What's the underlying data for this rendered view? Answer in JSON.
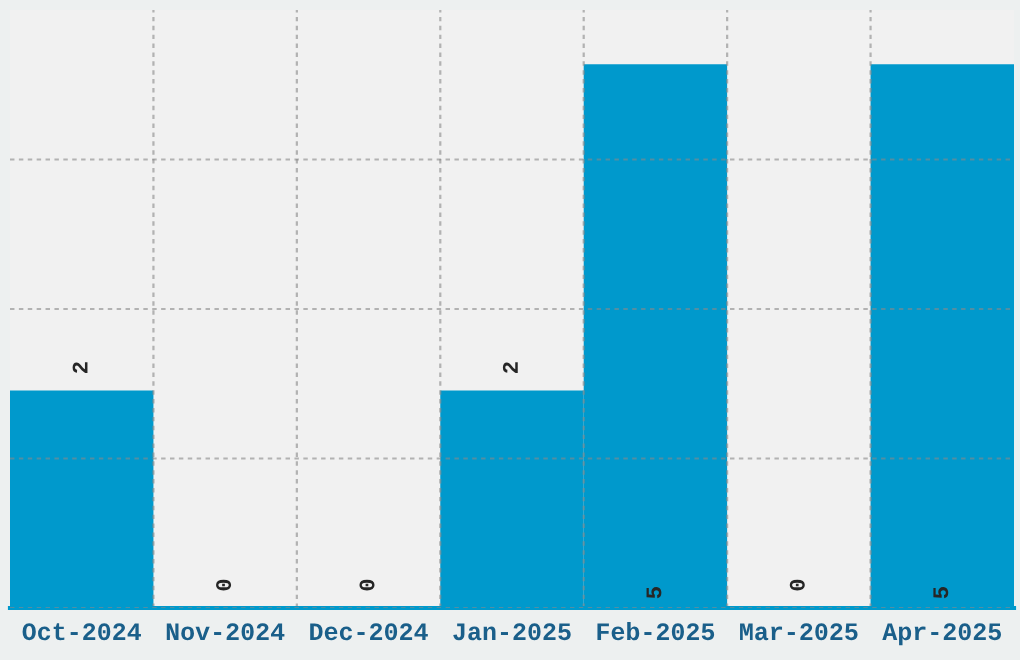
{
  "chart_data": {
    "type": "bar",
    "categories": [
      "Oct-2024",
      "Nov-2024",
      "Dec-2024",
      "Jan-2025",
      "Feb-2025",
      "Mar-2025",
      "Apr-2025"
    ],
    "values": [
      2,
      0,
      0,
      2,
      5,
      0,
      5
    ],
    "color": "#0099cc",
    "data_labels": true,
    "ylim": [
      0,
      5.5
    ],
    "yticks": [
      {
        "value": 0,
        "label": null
      },
      {
        "value": 1.375,
        "label": null
      },
      {
        "value": 2.75,
        "label": null
      },
      {
        "value": 4.125,
        "label": null
      }
    ],
    "tick_labels": "x",
    "grid": true,
    "legend": false
  }
}
